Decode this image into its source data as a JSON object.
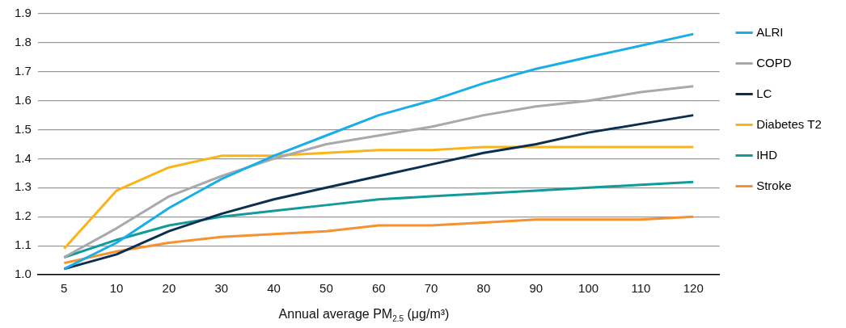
{
  "chart_data": {
    "type": "line",
    "xlabel": "Annual average PM$_{2.5}$ (μg/m³)",
    "categories": [
      "5",
      "10",
      "20",
      "30",
      "40",
      "50",
      "60",
      "70",
      "80",
      "90",
      "100",
      "110",
      "120"
    ],
    "series": [
      {
        "name": "ALRI",
        "color": "#1aaee8",
        "values": [
          1.02,
          1.11,
          1.23,
          1.33,
          1.41,
          1.48,
          1.55,
          1.6,
          1.66,
          1.71,
          1.75,
          1.79,
          1.83
        ]
      },
      {
        "name": "COPD",
        "color": "#a7a9ac",
        "values": [
          1.06,
          1.16,
          1.27,
          1.34,
          1.4,
          1.45,
          1.48,
          1.51,
          1.55,
          1.58,
          1.6,
          1.63,
          1.65
        ]
      },
      {
        "name": "LC",
        "color": "#0d2f4f",
        "values": [
          1.02,
          1.07,
          1.15,
          1.21,
          1.26,
          1.3,
          1.34,
          1.38,
          1.42,
          1.45,
          1.49,
          1.52,
          1.55
        ]
      },
      {
        "name": "Diabetes T2",
        "color": "#fbb416",
        "values": [
          1.09,
          1.29,
          1.37,
          1.41,
          1.41,
          1.42,
          1.43,
          1.43,
          1.44,
          1.44,
          1.44,
          1.44,
          1.44
        ]
      },
      {
        "name": "IHD",
        "color": "#139a9a",
        "values": [
          1.06,
          1.12,
          1.17,
          1.2,
          1.22,
          1.24,
          1.26,
          1.27,
          1.28,
          1.29,
          1.3,
          1.31,
          1.32
        ]
      },
      {
        "name": "Stroke",
        "color": "#f6912e",
        "values": [
          1.04,
          1.08,
          1.11,
          1.13,
          1.14,
          1.15,
          1.17,
          1.17,
          1.18,
          1.19,
          1.19,
          1.19,
          1.2
        ]
      }
    ],
    "ylim": [
      1.0,
      1.9
    ],
    "yticks": [
      {
        "value": 1.0,
        "label": "1.0"
      },
      1.1,
      1.2,
      1.3,
      1.4,
      1.5,
      1.6,
      1.7,
      1.8,
      1.9
    ],
    "grid": "y",
    "legend": "right",
    "marker": "none",
    "line_style": "solid"
  }
}
